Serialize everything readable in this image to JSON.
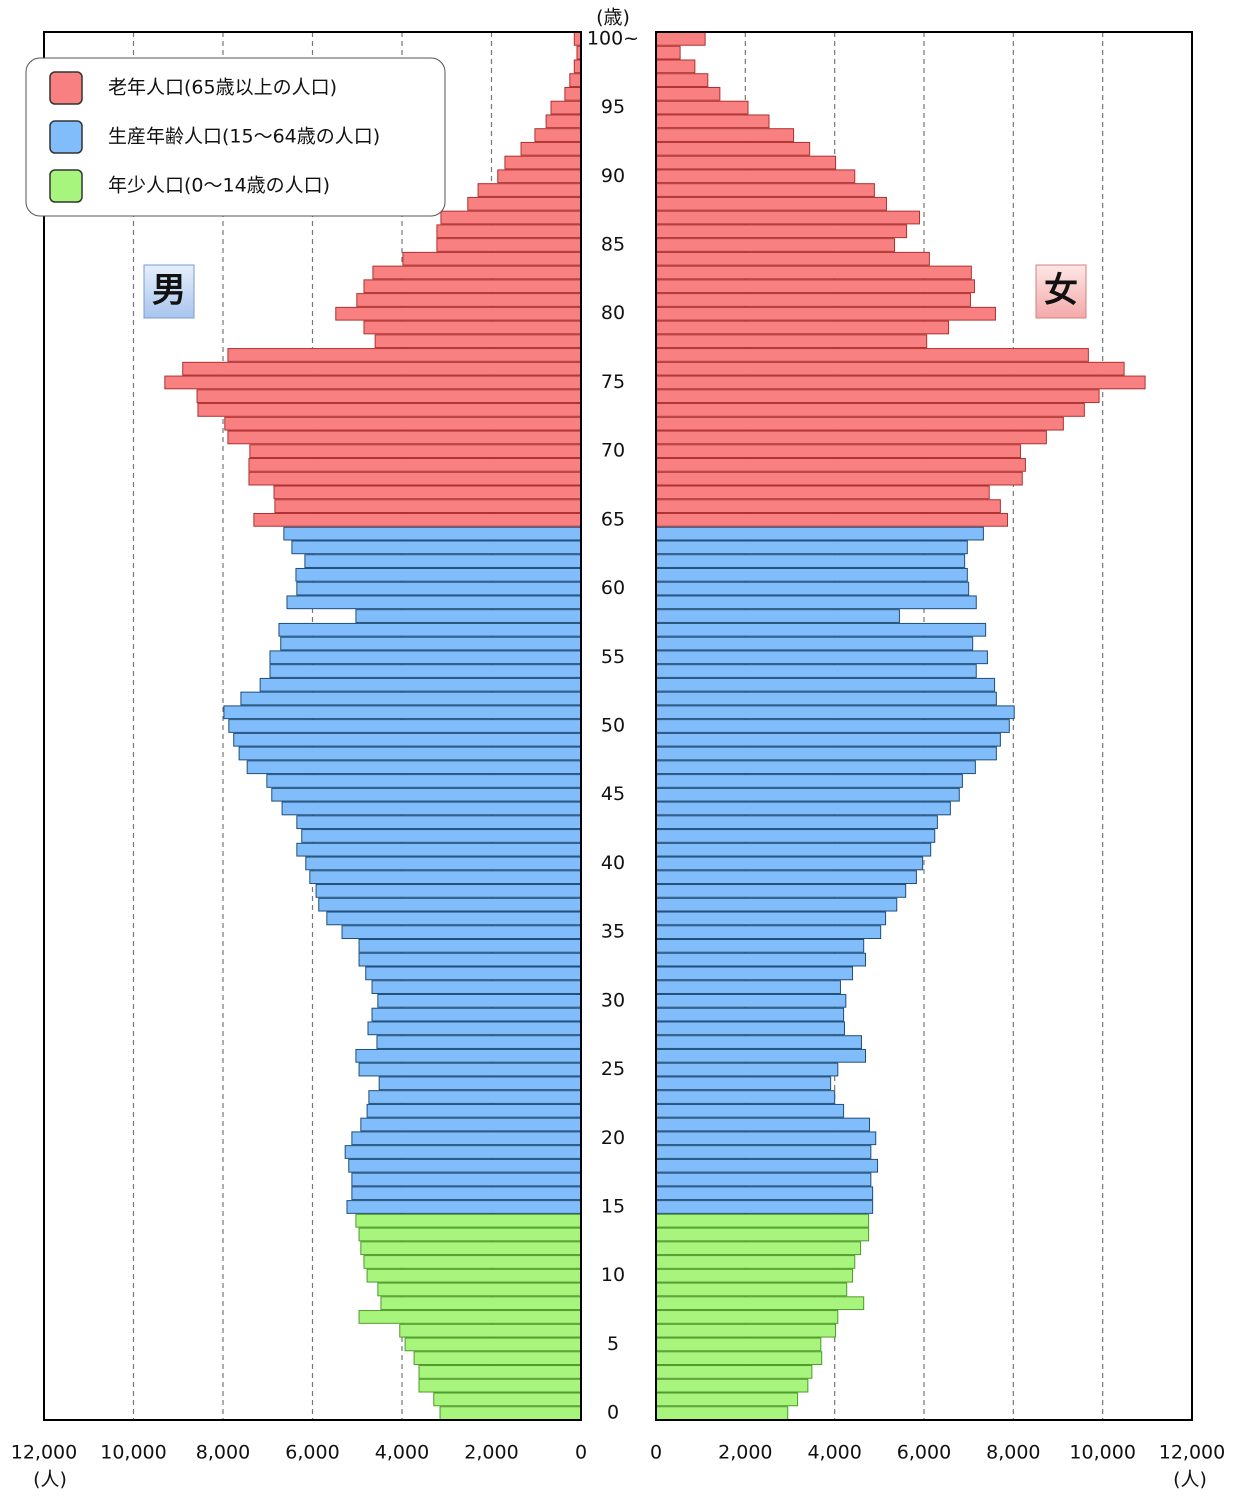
{
  "chart_data": {
    "type": "population-pyramid",
    "y_unit": "(歳)",
    "x_unit": "(人)",
    "categories": [
      "0",
      null,
      null,
      null,
      null,
      "5",
      null,
      null,
      null,
      null,
      "10",
      null,
      null,
      null,
      null,
      "15",
      null,
      null,
      null,
      null,
      "20",
      null,
      null,
      null,
      null,
      "25",
      null,
      null,
      null,
      null,
      "30",
      null,
      null,
      null,
      null,
      "35",
      null,
      null,
      null,
      null,
      "40",
      null,
      null,
      null,
      null,
      "45",
      null,
      null,
      null,
      null,
      "50",
      null,
      null,
      null,
      null,
      "55",
      null,
      null,
      null,
      null,
      "60",
      null,
      null,
      null,
      null,
      "65",
      null,
      null,
      null,
      null,
      "70",
      null,
      null,
      null,
      null,
      "75",
      null,
      null,
      null,
      null,
      "80",
      null,
      null,
      null,
      null,
      "85",
      null,
      null,
      null,
      null,
      "90",
      null,
      null,
      null,
      null,
      "95",
      null,
      null,
      null,
      null,
      "100~"
    ],
    "groups": [
      {
        "name": "老年人口(65歳以上の人口)",
        "color": "#f98080",
        "stroke": "#b03030",
        "age_min": 65
      },
      {
        "name": "生産年齢人口(15〜64歳の人口)",
        "color": "#80bdfa",
        "stroke": "#1f4e79",
        "age_min": 15
      },
      {
        "name": "年少人口(0〜14歳の人口)",
        "color": "#a8f57e",
        "stroke": "#4f9a2a",
        "age_min": 0
      }
    ],
    "series": [
      {
        "name": "男",
        "side": "left",
        "values": [
          3150,
          3290,
          3620,
          3620,
          3730,
          3930,
          4050,
          4960,
          4470,
          4540,
          4780,
          4850,
          4920,
          4960,
          5030,
          5230,
          5120,
          5120,
          5190,
          5270,
          5120,
          4920,
          4780,
          4740,
          4510,
          4960,
          5030,
          4560,
          4760,
          4670,
          4540,
          4670,
          4810,
          4960,
          4960,
          5340,
          5680,
          5860,
          5920,
          6060,
          6150,
          6350,
          6240,
          6350,
          6680,
          6910,
          7020,
          7460,
          7640,
          7760,
          7870,
          7980,
          7600,
          7170,
          6950,
          6950,
          6710,
          6750,
          5030,
          6570,
          6350,
          6370,
          6170,
          6460,
          6640,
          7310,
          6840,
          6860,
          7420,
          7420,
          7400,
          7890,
          7960,
          8560,
          8580,
          9300,
          8900,
          7890,
          4600,
          4850,
          5480,
          5010,
          4850,
          4650,
          3980,
          3220,
          3220,
          3130,
          2530,
          2300,
          1860,
          1700,
          1340,
          1030,
          780,
          670,
          360,
          250,
          150,
          90,
          150
        ]
      },
      {
        "name": "女",
        "side": "right",
        "values": [
          2950,
          3170,
          3400,
          3490,
          3710,
          3690,
          4020,
          4070,
          4650,
          4270,
          4400,
          4450,
          4580,
          4760,
          4760,
          4850,
          4850,
          4810,
          4960,
          4810,
          4920,
          4780,
          4200,
          4000,
          3910,
          4070,
          4690,
          4600,
          4220,
          4200,
          4250,
          4130,
          4400,
          4690,
          4650,
          5030,
          5140,
          5390,
          5590,
          5830,
          5970,
          6150,
          6240,
          6300,
          6590,
          6790,
          6860,
          7150,
          7620,
          7710,
          7910,
          8020,
          7620,
          7580,
          7170,
          7420,
          7090,
          7380,
          5450,
          7170,
          7000,
          6970,
          6910,
          6970,
          7330,
          7870,
          7710,
          7460,
          8200,
          8270,
          8160,
          8740,
          9120,
          9590,
          9920,
          10950,
          10480,
          9680,
          6060,
          6550,
          7600,
          7040,
          7130,
          7060,
          6120,
          5340,
          5610,
          5900,
          5160,
          4890,
          4450,
          4020,
          3440,
          3080,
          2530,
          2060,
          1430,
          1160,
          870,
          540,
          1100
        ]
      }
    ],
    "xlim": [
      0,
      12000
    ],
    "xticks": [
      0,
      {
        "value": 2000,
        "label": "2,000"
      },
      {
        "value": 4000,
        "label": "4,000"
      },
      {
        "value": 6000,
        "label": "6,000"
      },
      {
        "value": 8000,
        "label": "8,000"
      },
      {
        "value": 10000,
        "label": "10,000"
      },
      {
        "value": 12000,
        "label": "12,000"
      }
    ],
    "grid": true
  }
}
